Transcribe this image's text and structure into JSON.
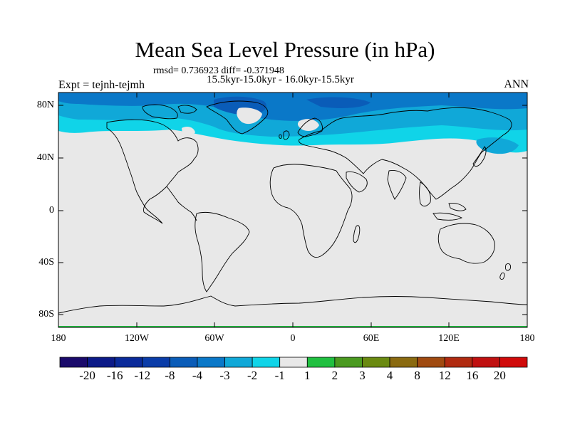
{
  "title": "Mean Sea Level Pressure (in hPa)",
  "stats": "rmsd= 0.736923 diff= -0.371948",
  "period": "15.5kyr-15.0kyr - 16.0kyr-15.5kyr",
  "experiment": "Expt = tejnh-tejmh",
  "season": "ANN",
  "axes": {
    "y_ticks": [
      "80N",
      "40N",
      "0",
      "40S",
      "80S"
    ],
    "x_ticks": [
      "180",
      "120W",
      "60W",
      "0",
      "60E",
      "120E",
      "180"
    ]
  },
  "colorbar": {
    "labels": [
      "-20",
      "-16",
      "-12",
      "-8",
      "-4",
      "-3",
      "-2",
      "-1",
      "1",
      "2",
      "3",
      "4",
      "8",
      "12",
      "16",
      "20"
    ],
    "colors": [
      "#1a0a6b",
      "#0c1a88",
      "#0a2a9a",
      "#0a3ca8",
      "#0a5cb8",
      "#0a78c8",
      "#10a8d8",
      "#10d4e8",
      "#e8e8e8",
      "#20c040",
      "#4a9a20",
      "#6a8a10",
      "#8a6a10",
      "#a04a10",
      "#b02a10",
      "#c01010",
      "#d00a0a"
    ]
  },
  "map": {
    "background_color": "#e8e8e8",
    "anomaly_level_dark": "#0a78c8",
    "anomaly_level_mid": "#10a8d8",
    "anomaly_level_light": "#10d4e8"
  }
}
